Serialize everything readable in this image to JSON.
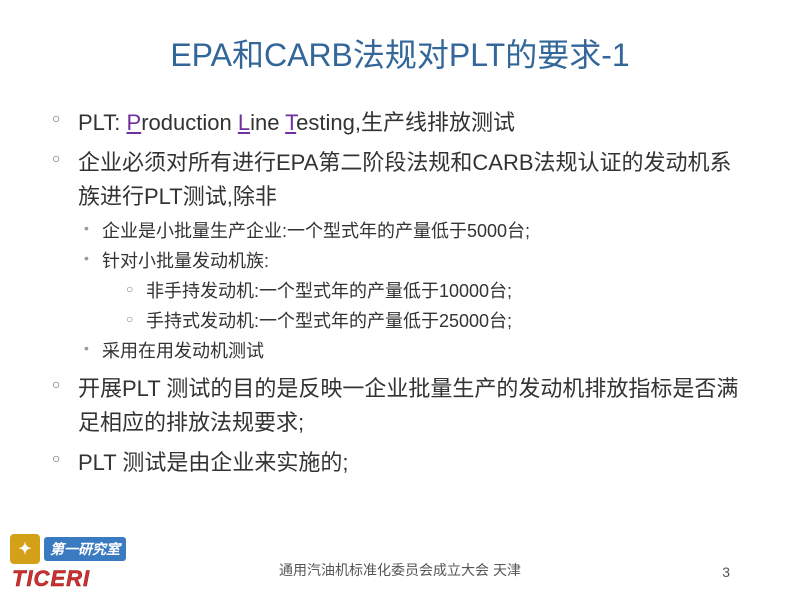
{
  "title": {
    "full": "EPA和CARB法规对PLT的要求-1",
    "color": "#336699",
    "fontsize": 32
  },
  "bullets": {
    "items": [
      {
        "prefix": "PLT: ",
        "p": "P",
        "rod": "roduction ",
        "l": "L",
        "ine": "ine ",
        "t": "T",
        "est": "esting,生产线排放测试"
      }
    ],
    "b2": "企业必须对所有进行EPA第二阶段法规和CARB法规认证的发动机系族进行PLT测试,除非",
    "b2_sub": [
      "企业是小批量生产企业:一个型式年的产量低于5000台;",
      "针对小批量发动机族:"
    ],
    "b2_sub2": [
      "非手持发动机:一个型式年的产量低于10000台;",
      "手持式发动机:一个型式年的产量低于25000台;"
    ],
    "b2_sub3": "采用在用发动机测试",
    "b3": "开展PLT 测试的目的是反映一企业批量生产的发动机排放指标是否满足相应的排放法规要求;",
    "b4": "PLT 测试是由企业来实施的;"
  },
  "footer": {
    "center": "通用汽油机标准化委员会成立大会    天津",
    "page": "3",
    "logo_cn": "第一研究室",
    "logo_en": "TICERI",
    "logo_badge_color": "#d4a017",
    "logo_cn_bg": "#3a7ac0",
    "logo_en_color": "#d03030"
  },
  "style": {
    "body_fontsize": 22,
    "sub_fontsize": 18,
    "underline_color": "#7030a0",
    "bg": "#ffffff"
  }
}
